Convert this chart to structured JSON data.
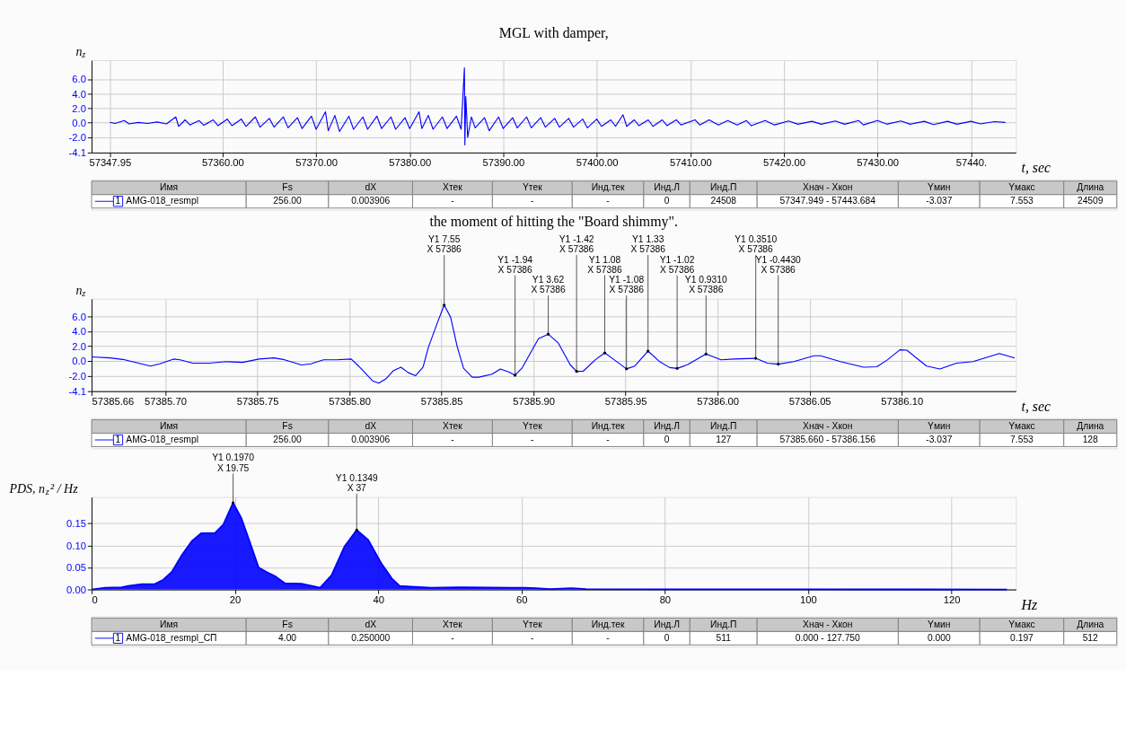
{
  "chart_data": [
    {
      "type": "line",
      "title": "MGL with damper,",
      "ylabel": "n$_{z}$",
      "xlabel": "t, sec",
      "grid": true,
      "xlim": [
        57346.0,
        57444.8
      ],
      "ylim": [
        -4.1,
        8.6
      ],
      "xticks": [
        {
          "value": 57347.95,
          "label": "57347.95"
        },
        {
          "value": 57360,
          "label": "57360.00"
        },
        {
          "value": 57370,
          "label": "57370.00"
        },
        {
          "value": 57380,
          "label": "57380.00"
        },
        {
          "value": 57390,
          "label": "57390.00"
        },
        {
          "value": 57400,
          "label": "57400.00"
        },
        {
          "value": 57410,
          "label": "57410.00"
        },
        {
          "value": 57420,
          "label": "57420.00"
        },
        {
          "value": 57430,
          "label": "57430.00"
        },
        {
          "value": 57440,
          "label": "57440."
        }
      ],
      "yticks": [
        -4.1,
        {
          "value": -2,
          "label": "-2.0"
        },
        {
          "value": 0,
          "label": "0.0"
        },
        {
          "value": 2,
          "label": "2.0"
        },
        {
          "value": 4,
          "label": "4.0"
        },
        {
          "value": 6,
          "label": "6.0"
        }
      ],
      "series": [
        {
          "name": "AMG-018_resmpl",
          "color": "#0000ff",
          "x": [
            57347.95,
            57348.5,
            57349.5,
            57350,
            57351,
            57352,
            57353,
            57354,
            57355,
            57355.3,
            57356,
            57356.5,
            57357.5,
            57358,
            57359,
            57359.5,
            57360.5,
            57361,
            57362,
            57362.5,
            57363.5,
            57364,
            57365,
            57365.5,
            57366.5,
            57367,
            57368,
            57368.5,
            57369.5,
            57370,
            57371,
            57371.3,
            57372,
            57372.5,
            57373.5,
            57374,
            57375,
            57375.5,
            57376.5,
            57377,
            57378,
            57378.5,
            57379.5,
            57380,
            57381,
            57381.3,
            57382,
            57382.5,
            57383.5,
            57384,
            57385,
            57385.5,
            57385.85,
            57385.9,
            57386.0,
            57386.2,
            57386.6,
            57387,
            57388,
            57388.5,
            57389.5,
            57390,
            57391,
            57391.5,
            57392.5,
            57393,
            57394,
            57394.5,
            57395.5,
            57396,
            57397,
            57397.5,
            57398.5,
            57399,
            57400,
            57400.5,
            57401.5,
            57402,
            57402.8,
            57403.2,
            57404,
            57404.5,
            57405.5,
            57406,
            57407,
            57407.5,
            57408.5,
            57409,
            57410.5,
            57411,
            57412,
            57413,
            57414,
            57415,
            57416,
            57416.5,
            57418,
            57419,
            57420.5,
            57421.5,
            57423,
            57424,
            57425.5,
            57426.5,
            57428,
            57428.5,
            57430,
            57431,
            57432.5,
            57433.5,
            57435,
            57436,
            57437.5,
            57438.5,
            57440,
            57441,
            57442.5,
            57443.68
          ],
          "values": [
            0.05,
            -0.1,
            0.3,
            -0.15,
            0.05,
            -0.1,
            0.1,
            -0.15,
            0.8,
            -0.5,
            0.4,
            -0.3,
            0.3,
            -0.35,
            0.4,
            -0.4,
            0.5,
            -0.4,
            0.5,
            -0.5,
            0.8,
            -0.6,
            0.6,
            -0.6,
            0.8,
            -0.7,
            0.7,
            -0.8,
            0.9,
            -0.9,
            1.5,
            -1.1,
            1.0,
            -1.2,
            0.9,
            -0.9,
            0.8,
            -0.9,
            0.9,
            -0.8,
            0.8,
            -0.9,
            0.7,
            -0.8,
            1.5,
            -0.8,
            1.0,
            -0.9,
            0.8,
            -0.8,
            0.9,
            -0.9,
            7.55,
            -3.04,
            3.6,
            -2.0,
            0.8,
            -0.7,
            0.7,
            -1.1,
            0.8,
            -0.8,
            0.7,
            -0.7,
            0.8,
            -0.7,
            0.7,
            -0.6,
            0.6,
            -0.6,
            0.6,
            -0.6,
            0.5,
            -0.7,
            0.5,
            -0.5,
            0.4,
            -0.5,
            1.1,
            -0.5,
            0.4,
            -0.4,
            0.4,
            -0.5,
            0.4,
            -0.4,
            0.4,
            -0.3,
            0.4,
            -0.3,
            0.4,
            -0.3,
            0.3,
            -0.3,
            0.3,
            -0.4,
            0.3,
            -0.3,
            0.25,
            -0.2,
            0.2,
            -0.2,
            0.25,
            -0.2,
            0.3,
            -0.3,
            0.3,
            -0.2,
            0.25,
            -0.2,
            0.2,
            -0.25,
            0.2,
            -0.2,
            0.2,
            -0.15,
            0.15,
            0.05
          ]
        }
      ],
      "annotations": [
        "Имя",
        "Fs",
        "dX",
        "Xтек",
        "Yтек",
        "Инд.тек",
        "Инд.Л",
        "Инд.П",
        "Xнач - Xкон",
        "Yмин",
        "Yмакс",
        "Длина",
        "1",
        "256.00",
        "0.003906",
        "-",
        "-",
        "-",
        "0",
        "24508",
        "57347.949 - 57443.684",
        "-3.037",
        "7.553",
        "24509"
      ]
    },
    {
      "type": "line",
      "title": "the moment of hitting the \"Board shimmy\".",
      "ylabel": "n$_{z}$",
      "xlabel": "t, sec",
      "grid": true,
      "xlim": [
        57385.66,
        57386.162
      ],
      "ylim": [
        -4.1,
        8.4
      ],
      "xticks": [
        {
          "value": 57385.66,
          "label": "57385.66"
        },
        {
          "value": 57385.7,
          "label": "57385.70"
        },
        57385.75,
        {
          "value": 57385.8,
          "label": "57385.80"
        },
        57385.85,
        {
          "value": 57385.9,
          "label": "57385.90"
        },
        57385.95,
        {
          "value": 57386.0,
          "label": "57386.00"
        },
        57386.05,
        {
          "value": 57386.1,
          "label": "57386.10"
        }
      ],
      "yticks": [
        -4.1,
        {
          "value": -2,
          "label": "-2.0"
        },
        {
          "value": 0,
          "label": "0.0"
        },
        {
          "value": 2,
          "label": "2.0"
        },
        {
          "value": 4,
          "label": "4.0"
        },
        {
          "value": 6,
          "label": "6.0"
        }
      ],
      "series": [
        {
          "name": "AMG-018_resmpl",
          "color": "#0000ff",
          "x": [
            57385.66,
            57385.67,
            57385.677,
            57385.692,
            57385.697,
            57385.7045,
            57385.708,
            57385.715,
            57385.724,
            57385.733,
            57385.742,
            57385.751,
            57385.759,
            57385.764,
            57385.774,
            57385.779,
            57385.786,
            57385.793,
            57385.801,
            57385.805,
            57385.8126,
            57385.816,
            57385.82,
            57385.824,
            57385.828,
            57385.832,
            57385.836,
            57385.84,
            57385.843,
            57385.848,
            57385.8515,
            57385.855,
            57385.8586,
            57385.862,
            57385.8667,
            57385.8703,
            57385.8775,
            57385.882,
            57385.8865,
            57385.89,
            57385.8937,
            57385.9027,
            57385.908,
            57385.9135,
            57385.92,
            57385.9234,
            57385.927,
            57385.9333,
            57385.9387,
            57385.9441,
            57385.9505,
            57385.955,
            57385.9622,
            57385.9685,
            57385.9739,
            57385.978,
            57385.9838,
            57385.9937,
            57386.0018,
            57386.009,
            57386.0207,
            57386.027,
            57386.0329,
            57386.0414,
            57386.0523,
            57386.0559,
            57386.0667,
            57386.0793,
            57386.0865,
            57386.092,
            57386.099,
            57386.1027,
            57386.1135,
            57386.1207,
            57386.1297,
            57386.1387,
            57386.153,
            57386.1613
          ],
          "values": [
            0.54,
            0.4,
            0.2,
            -0.7,
            -0.4,
            0.25,
            0.15,
            -0.3,
            -0.3,
            -0.1,
            -0.2,
            0.25,
            0.4,
            0.2,
            -0.55,
            -0.4,
            0.15,
            0.15,
            0.25,
            -0.7,
            -2.7,
            -3.0,
            -2.4,
            -1.3,
            -0.85,
            -1.6,
            -2.0,
            -0.85,
            1.9,
            5.3,
            7.55,
            5.9,
            1.9,
            -1.0,
            -2.2,
            -2.2,
            -1.8,
            -1.1,
            -1.5,
            -1.94,
            -1.0,
            3.0,
            3.62,
            2.4,
            -0.55,
            -1.42,
            -1.4,
            0.1,
            1.08,
            0.1,
            -1.08,
            -0.7,
            1.33,
            -0.1,
            -0.9,
            -1.02,
            -0.5,
            0.931,
            0.15,
            0.25,
            0.351,
            -0.3,
            -0.443,
            -0.1,
            0.7,
            0.7,
            -0.1,
            -0.85,
            -0.8,
            0.1,
            1.5,
            1.45,
            -0.7,
            -1.1,
            -0.3,
            -0.1,
            1.0,
            0.4
          ]
        }
      ],
      "annotations": [
        {
          "text": "Y1 7.55\nX 57386",
          "x": 57385.8515,
          "y": 7.55
        },
        {
          "text": "Y1 -1.94\nX 57386",
          "x": 57385.89,
          "y": -1.94
        },
        {
          "text": "Y1 3.62\nX 57386",
          "x": 57385.908,
          "y": 3.62
        },
        {
          "text": "Y1 -1.42\nX 57386",
          "x": 57385.9234,
          "y": -1.42
        },
        {
          "text": "Y1 1.08\nX 57386",
          "x": 57385.9387,
          "y": 1.08
        },
        {
          "text": "Y1 -1.08\nX 57386",
          "x": 57385.9505,
          "y": -1.08
        },
        {
          "text": "Y1 1.33\nX 57386",
          "x": 57385.9622,
          "y": 1.33
        },
        {
          "text": "Y1 -1.02\nX 57386",
          "x": 57385.978,
          "y": -1.02
        },
        {
          "text": "Y1 0.9310\nX 57386",
          "x": 57385.9937,
          "y": 0.931
        },
        {
          "text": "Y1 0.3510\nX 57386",
          "x": 57386.0207,
          "y": 0.351
        },
        {
          "text": "Y1 -0.4430\nX 57386",
          "x": 57386.0329,
          "y": -0.443
        },
        "Имя",
        "Fs",
        "dX",
        "Xтек",
        "Yтек",
        "Инд.тек",
        "Инд.Л",
        "Инд.П",
        "Xнач - Xкон",
        "Yмин",
        "Yмакс",
        "Длина",
        "1",
        "256.00",
        "0.003906",
        "-",
        "-",
        "-",
        "0",
        "127",
        "57385.660 - 57386.156",
        "-3.037",
        "7.553",
        "128"
      ]
    },
    {
      "type": "area",
      "ylabel": "PDS, n$_{z}$² / Hz",
      "xlabel": "Hz",
      "grid": true,
      "xlim": [
        0,
        129
      ],
      "ylim": [
        0,
        0.21
      ],
      "xticks": [
        0,
        20,
        40,
        60,
        80,
        100,
        120
      ],
      "yticks": [
        {
          "value": 0,
          "label": "0.00"
        },
        {
          "value": 0.05,
          "label": "0.05"
        },
        {
          "value": 0.1,
          "label": "0.10"
        },
        {
          "value": 0.15,
          "label": "0.15"
        }
      ],
      "series": [
        {
          "name": "AMG-018_resmpl_СП",
          "color": "#0000ff",
          "x": [
            0,
            1.9,
            4.2,
            5.1,
            7.0,
            8.8,
            10,
            11.2,
            12.6,
            14,
            15.3,
            17.2,
            18.4,
            19.75,
            20.9,
            22.3,
            23.3,
            24.4,
            25.6,
            27,
            29.3,
            30.9,
            31.9,
            33.5,
            35.3,
            37,
            38.6,
            40.5,
            41.9,
            43,
            45.1,
            47.4,
            52.1,
            58.6,
            60.5,
            62,
            64,
            67,
            69,
            80,
            100,
            127.75
          ],
          "values": [
            0,
            0.004,
            0.005,
            0.008,
            0.012,
            0.012,
            0.022,
            0.04,
            0.078,
            0.11,
            0.128,
            0.128,
            0.148,
            0.197,
            0.162,
            0.0975,
            0.05,
            0.04,
            0.03,
            0.014,
            0.013,
            0.0075,
            0.004,
            0.0325,
            0.0975,
            0.1349,
            0.1125,
            0.0575,
            0.025,
            0.008,
            0.006,
            0.004,
            0.005,
            0.004,
            0.004,
            0.003,
            0.001,
            0.003,
            0.001,
            0.0005,
            0.0005,
            0
          ]
        }
      ],
      "annotations": [
        {
          "text": "Y1 0.1970\nX 19.75",
          "x": 19.75,
          "y": 0.197
        },
        {
          "text": "Y1 0.1349\nX 37",
          "x": 37,
          "y": 0.1349
        },
        "Имя",
        "Fs",
        "dX",
        "Xтек",
        "Yтек",
        "Инд.тек",
        "Инд.Л",
        "Инд.П",
        "Xнач - Xкон",
        "Yмин",
        "Yмакс",
        "Длина",
        "1",
        "4.00",
        "0.250000",
        "-",
        "-",
        "-",
        "0",
        "511",
        "0.000 - 127.750",
        "0.000",
        "0.197",
        "512"
      ]
    }
  ]
}
